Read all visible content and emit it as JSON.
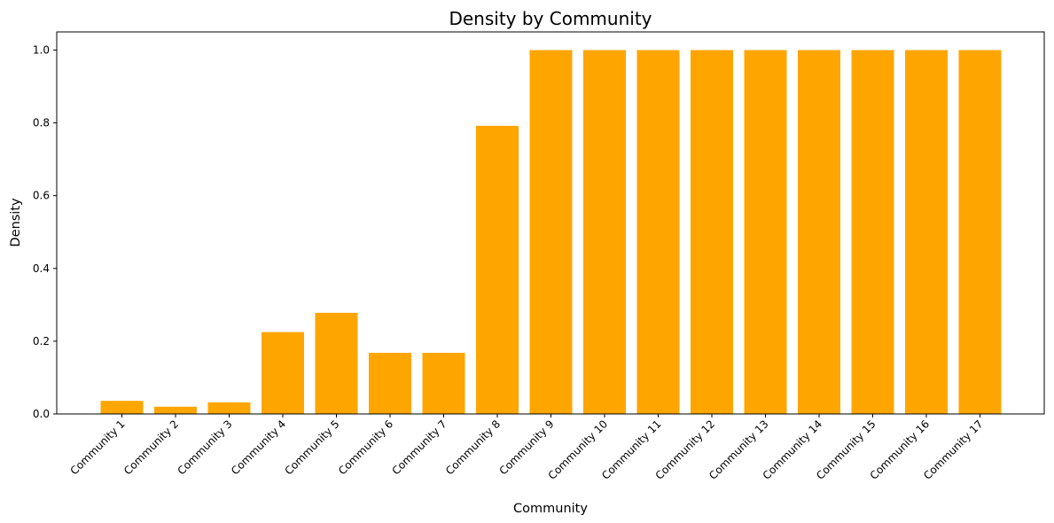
{
  "chart_data": {
    "type": "bar",
    "title": "Density by Community",
    "xlabel": "Community",
    "ylabel": "Density",
    "categories": [
      "Community 1",
      "Community 2",
      "Community 3",
      "Community 4",
      "Community 5",
      "Community 6",
      "Community 7",
      "Community 8",
      "Community 9",
      "Community 10",
      "Community 11",
      "Community 12",
      "Community 13",
      "Community 14",
      "Community 15",
      "Community 16",
      "Community 17"
    ],
    "values": [
      0.036,
      0.02,
      0.032,
      0.225,
      0.278,
      0.168,
      0.168,
      0.792,
      1.0,
      1.0,
      1.0,
      1.0,
      1.0,
      1.0,
      1.0,
      1.0,
      1.0
    ],
    "ylim": [
      0,
      1.05
    ],
    "yticks": [
      "0.0",
      "0.2",
      "0.4",
      "0.6",
      "0.8",
      "1.0"
    ],
    "bar_color": "#FFA500",
    "grid": false,
    "legend": "none"
  }
}
